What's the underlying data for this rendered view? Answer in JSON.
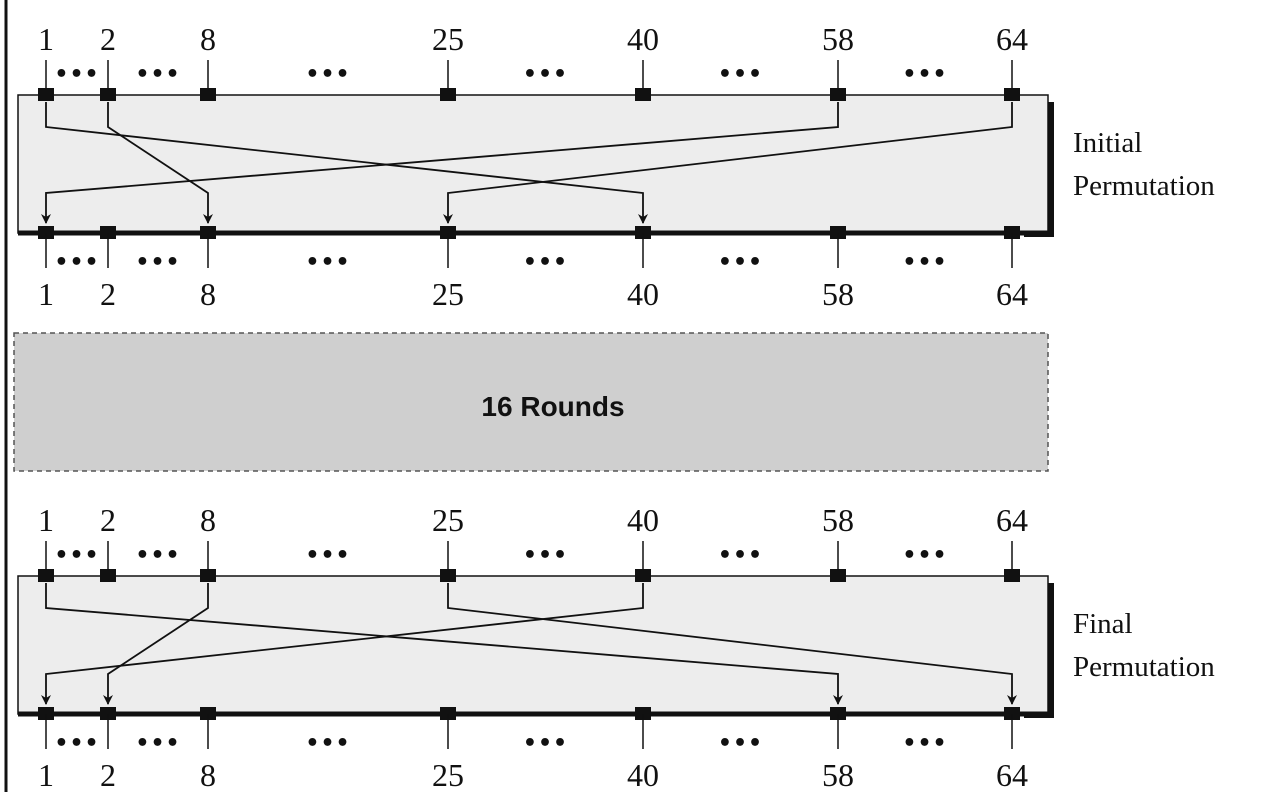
{
  "positions": [
    "1",
    "2",
    "8",
    "25",
    "40",
    "58",
    "64"
  ],
  "ellipsis": "•••",
  "initial": {
    "label_line1": "Initial",
    "label_line2": "Permutation",
    "mappings": [
      {
        "from": "1",
        "to": "40"
      },
      {
        "from": "2",
        "to": "8"
      },
      {
        "from": "58",
        "to": "1"
      },
      {
        "from": "64",
        "to": "25"
      }
    ]
  },
  "rounds": {
    "label": "16 Rounds"
  },
  "final": {
    "label_line1": "Final",
    "label_line2": "Permutation",
    "mappings": [
      {
        "from": "1",
        "to": "58"
      },
      {
        "from": "8",
        "to": "2"
      },
      {
        "from": "25",
        "to": "64"
      },
      {
        "from": "40",
        "to": "1"
      }
    ]
  },
  "colors": {
    "box_fill": "#ededed",
    "rounds_fill": "#cfcfcf",
    "line": "#111111"
  }
}
